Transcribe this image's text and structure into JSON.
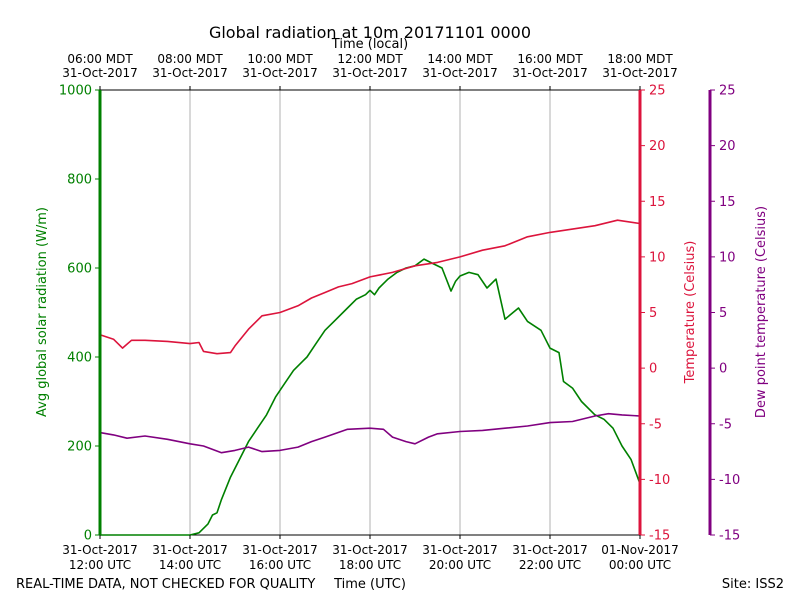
{
  "chart_data": {
    "type": "line",
    "title": "Global radiation at 10m 20171101 0000",
    "top_axis_label": "Time (local)",
    "bottom_axis_label": "Time (UTC)",
    "footer_left": "REAL-TIME DATA, NOT CHECKED FOR QUALITY",
    "footer_right": "Site: ISS2",
    "x_range_hours_utc": [
      12,
      24
    ],
    "x_ticks_utc": [
      {
        "hour": 12,
        "line1": "31-Oct-2017",
        "line2": "12:00 UTC"
      },
      {
        "hour": 14,
        "line1": "31-Oct-2017",
        "line2": "14:00 UTC"
      },
      {
        "hour": 16,
        "line1": "31-Oct-2017",
        "line2": "16:00 UTC"
      },
      {
        "hour": 18,
        "line1": "31-Oct-2017",
        "line2": "18:00 UTC"
      },
      {
        "hour": 20,
        "line1": "31-Oct-2017",
        "line2": "20:00 UTC"
      },
      {
        "hour": 22,
        "line1": "31-Oct-2017",
        "line2": "22:00 UTC"
      },
      {
        "hour": 24,
        "line1": "01-Nov-2017",
        "line2": "00:00 UTC"
      }
    ],
    "x_ticks_local": [
      {
        "hour": 12,
        "line1": "06:00 MDT",
        "line2": "31-Oct-2017"
      },
      {
        "hour": 14,
        "line1": "08:00 MDT",
        "line2": "31-Oct-2017"
      },
      {
        "hour": 16,
        "line1": "10:00 MDT",
        "line2": "31-Oct-2017"
      },
      {
        "hour": 18,
        "line1": "12:00 MDT",
        "line2": "31-Oct-2017"
      },
      {
        "hour": 20,
        "line1": "14:00 MDT",
        "line2": "31-Oct-2017"
      },
      {
        "hour": 22,
        "line1": "16:00 MDT",
        "line2": "31-Oct-2017"
      },
      {
        "hour": 24,
        "line1": "18:00 MDT",
        "line2": "31-Oct-2017"
      }
    ],
    "axes": {
      "radiation": {
        "label": "Avg global solar radiation (W/m)",
        "range": [
          0,
          1000
        ],
        "ticks": [
          0,
          200,
          400,
          600,
          800,
          1000
        ],
        "color": "#008000"
      },
      "temperature": {
        "label": "Temperature (Celsius)",
        "range": [
          -15,
          25
        ],
        "ticks": [
          -15,
          -10,
          -5,
          0,
          5,
          10,
          15,
          20,
          25
        ],
        "color": "#dc143c"
      },
      "dewpoint": {
        "label": "Dew point temperature (Celsius)",
        "range": [
          -15,
          25
        ],
        "ticks": [
          -15,
          -10,
          -5,
          0,
          5,
          10,
          15,
          20,
          25
        ],
        "color": "#800080"
      }
    },
    "series": [
      {
        "name": "Avg global solar radiation",
        "axis": "radiation",
        "color": "#008000",
        "points": [
          [
            12,
            0
          ],
          [
            13,
            0
          ],
          [
            14,
            0
          ],
          [
            14.2,
            5
          ],
          [
            14.4,
            25
          ],
          [
            14.5,
            45
          ],
          [
            14.6,
            50
          ],
          [
            14.7,
            80
          ],
          [
            14.9,
            130
          ],
          [
            15.1,
            170
          ],
          [
            15.3,
            210
          ],
          [
            15.5,
            240
          ],
          [
            15.7,
            270
          ],
          [
            15.9,
            310
          ],
          [
            16.1,
            340
          ],
          [
            16.3,
            370
          ],
          [
            16.5,
            390
          ],
          [
            16.6,
            400
          ],
          [
            16.8,
            430
          ],
          [
            17.0,
            460
          ],
          [
            17.2,
            480
          ],
          [
            17.5,
            510
          ],
          [
            17.7,
            530
          ],
          [
            17.9,
            540
          ],
          [
            18.0,
            550
          ],
          [
            18.1,
            540
          ],
          [
            18.2,
            555
          ],
          [
            18.4,
            575
          ],
          [
            18.6,
            590
          ],
          [
            18.8,
            600
          ],
          [
            19.0,
            605
          ],
          [
            19.2,
            620
          ],
          [
            19.4,
            610
          ],
          [
            19.6,
            600
          ],
          [
            19.8,
            548
          ],
          [
            19.9,
            570
          ],
          [
            20.0,
            582
          ],
          [
            20.2,
            590
          ],
          [
            20.4,
            585
          ],
          [
            20.6,
            555
          ],
          [
            20.8,
            575
          ],
          [
            21.0,
            485
          ],
          [
            21.3,
            510
          ],
          [
            21.5,
            480
          ],
          [
            21.8,
            460
          ],
          [
            22.0,
            420
          ],
          [
            22.2,
            410
          ],
          [
            22.3,
            345
          ],
          [
            22.5,
            330
          ],
          [
            22.7,
            300
          ],
          [
            23.0,
            270
          ],
          [
            23.2,
            260
          ],
          [
            23.4,
            240
          ],
          [
            23.6,
            200
          ],
          [
            23.8,
            170
          ],
          [
            24.0,
            115
          ]
        ]
      },
      {
        "name": "Temperature",
        "axis": "temperature",
        "color": "#dc143c",
        "points": [
          [
            12,
            3.0
          ],
          [
            12.3,
            2.6
          ],
          [
            12.5,
            1.8
          ],
          [
            12.7,
            2.5
          ],
          [
            13.0,
            2.5
          ],
          [
            13.5,
            2.4
          ],
          [
            14.0,
            2.2
          ],
          [
            14.2,
            2.3
          ],
          [
            14.3,
            1.5
          ],
          [
            14.6,
            1.3
          ],
          [
            14.9,
            1.4
          ],
          [
            15.0,
            2.0
          ],
          [
            15.3,
            3.5
          ],
          [
            15.6,
            4.7
          ],
          [
            16.0,
            5.0
          ],
          [
            16.4,
            5.6
          ],
          [
            16.7,
            6.3
          ],
          [
            17.0,
            6.8
          ],
          [
            17.3,
            7.3
          ],
          [
            17.6,
            7.6
          ],
          [
            18.0,
            8.2
          ],
          [
            18.5,
            8.6
          ],
          [
            19.0,
            9.2
          ],
          [
            19.5,
            9.5
          ],
          [
            20.0,
            10.0
          ],
          [
            20.5,
            10.6
          ],
          [
            21.0,
            11.0
          ],
          [
            21.5,
            11.8
          ],
          [
            22.0,
            12.2
          ],
          [
            22.5,
            12.5
          ],
          [
            23.0,
            12.8
          ],
          [
            23.5,
            13.3
          ],
          [
            24.0,
            13.0
          ]
        ]
      },
      {
        "name": "Dew point temperature",
        "axis": "dewpoint",
        "color": "#800080",
        "points": [
          [
            12,
            -5.8
          ],
          [
            12.3,
            -6.0
          ],
          [
            12.6,
            -6.3
          ],
          [
            13.0,
            -6.1
          ],
          [
            13.5,
            -6.4
          ],
          [
            14.0,
            -6.8
          ],
          [
            14.3,
            -7.0
          ],
          [
            14.7,
            -7.6
          ],
          [
            15.0,
            -7.4
          ],
          [
            15.3,
            -7.1
          ],
          [
            15.6,
            -7.5
          ],
          [
            16.0,
            -7.4
          ],
          [
            16.4,
            -7.1
          ],
          [
            16.7,
            -6.6
          ],
          [
            17.0,
            -6.2
          ],
          [
            17.5,
            -5.5
          ],
          [
            18.0,
            -5.4
          ],
          [
            18.3,
            -5.5
          ],
          [
            18.5,
            -6.2
          ],
          [
            18.8,
            -6.6
          ],
          [
            19.0,
            -6.8
          ],
          [
            19.3,
            -6.2
          ],
          [
            19.5,
            -5.9
          ],
          [
            20.0,
            -5.7
          ],
          [
            20.5,
            -5.6
          ],
          [
            21.0,
            -5.4
          ],
          [
            21.5,
            -5.2
          ],
          [
            22.0,
            -4.9
          ],
          [
            22.5,
            -4.8
          ],
          [
            23.0,
            -4.3
          ],
          [
            23.3,
            -4.1
          ],
          [
            23.6,
            -4.2
          ],
          [
            24.0,
            -4.3
          ]
        ]
      }
    ]
  }
}
